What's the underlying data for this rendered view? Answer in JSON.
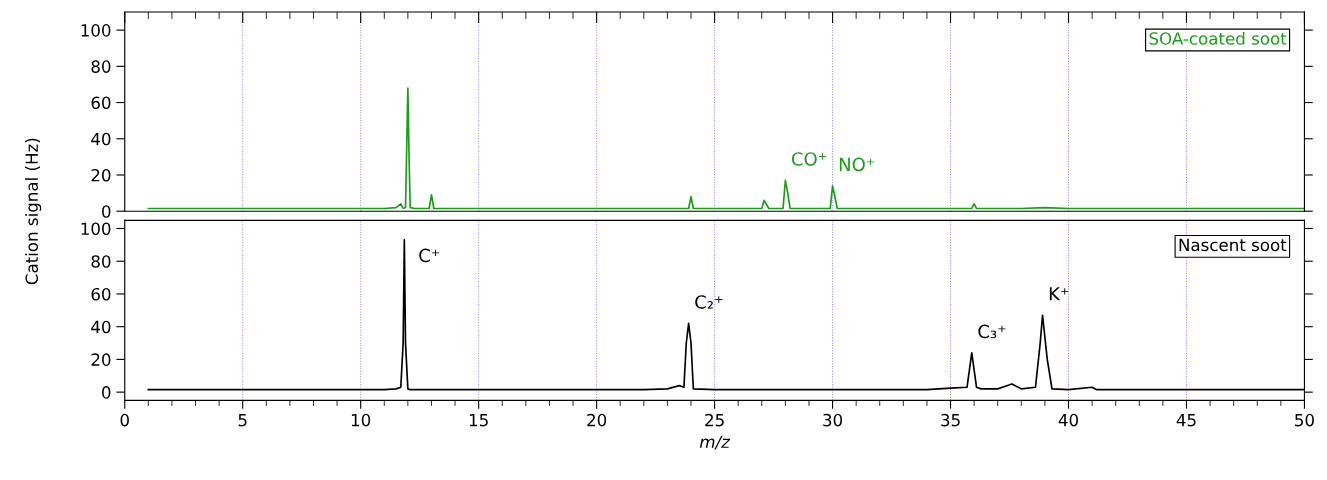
{
  "chart_data": [
    {
      "type": "line",
      "xlim": [
        0,
        50
      ],
      "ylim": [
        0,
        110
      ],
      "yticks": [
        0,
        20,
        40,
        60,
        80,
        100
      ],
      "xticks": [
        0,
        5,
        10,
        15,
        20,
        25,
        30,
        35,
        40,
        45,
        50
      ],
      "tick_labels": "y",
      "grid": "x",
      "series": [
        {
          "color": "#1a9e1a",
          "x": [
            1,
            2,
            3,
            4,
            5,
            6,
            7,
            8,
            9,
            10,
            11,
            11.5,
            11.7,
            11.8,
            11.9,
            12.0,
            12.05,
            12.1,
            12.3,
            12.9,
            13.0,
            13.1,
            14,
            15,
            16,
            17,
            18,
            19,
            20,
            21,
            22,
            23,
            23.9,
            24.0,
            24.1,
            25,
            26,
            27,
            27.1,
            27.3,
            27.9,
            28.0,
            28.1,
            28.2,
            29,
            29.9,
            30.0,
            30.1,
            30.2,
            31,
            32,
            33,
            34,
            35,
            35.9,
            36.0,
            36.1,
            37,
            38,
            39,
            40,
            41,
            42,
            43,
            44,
            45,
            46,
            47,
            48,
            49,
            50
          ],
          "values": [
            1.5,
            1.5,
            1.5,
            1.5,
            1.5,
            1.5,
            1.5,
            1.5,
            1.5,
            1.5,
            1.5,
            2,
            4,
            1.5,
            2,
            68,
            30,
            2,
            1.5,
            1.5,
            9,
            1.5,
            1.5,
            1.5,
            1.5,
            1.5,
            1.5,
            1.5,
            1.5,
            1.5,
            1.5,
            1.5,
            1.5,
            8,
            1.5,
            1.5,
            1.5,
            1.5,
            6,
            1.5,
            1.5,
            17,
            10,
            1.5,
            1.5,
            1.5,
            14,
            8,
            1.5,
            1.5,
            1.5,
            1.5,
            1.5,
            1.5,
            1.5,
            4,
            1.5,
            1.5,
            1.5,
            2,
            1.5,
            1.5,
            1.5,
            1.5,
            1.5,
            1.5,
            1.5,
            1.5,
            1.5,
            1.5,
            1.5
          ]
        }
      ],
      "annotations": [
        "SOA-coated soot",
        {
          "text": "CO⁺",
          "x": 28.0,
          "y": 17
        },
        {
          "text": "NO⁺",
          "x": 30.0,
          "y": 14
        }
      ]
    },
    {
      "type": "line",
      "xlim": [
        0,
        50
      ],
      "ylim": [
        -5,
        105
      ],
      "yticks": [
        0,
        20,
        40,
        60,
        80,
        100
      ],
      "xticks": [
        0,
        5,
        10,
        15,
        20,
        25,
        30,
        35,
        40,
        45,
        50
      ],
      "grid": "x",
      "xlabel": "m/z",
      "ylabel": "Cation signal (Hz)",
      "series": [
        {
          "color": "#000000",
          "x": [
            1,
            2,
            3,
            4,
            5,
            6,
            7,
            8,
            9,
            10,
            11,
            11.5,
            11.7,
            11.8,
            11.85,
            11.9,
            12.0,
            12.1,
            13,
            14,
            15,
            16,
            17,
            18,
            19,
            20,
            21,
            22,
            23,
            23.5,
            23.7,
            23.8,
            23.9,
            24.0,
            24.1,
            25,
            26,
            27,
            28,
            29,
            30,
            31,
            32,
            33,
            34,
            35,
            35.7,
            35.9,
            36.1,
            36.3,
            37,
            37.6,
            38,
            38.6,
            38.8,
            38.9,
            39.1,
            39.3,
            40,
            41,
            41.2,
            42,
            43,
            44,
            45,
            46,
            47,
            48,
            49,
            50
          ],
          "values": [
            1.5,
            1.5,
            1.5,
            1.5,
            1.5,
            1.5,
            1.5,
            1.5,
            1.5,
            1.5,
            1.5,
            2,
            3,
            30,
            93,
            30,
            2,
            1.5,
            1.5,
            1.5,
            1.5,
            1.5,
            1.5,
            1.5,
            1.5,
            1.5,
            1.5,
            1.5,
            2,
            4,
            3,
            30,
            42,
            30,
            2,
            1.5,
            1.5,
            1.5,
            1.5,
            1.5,
            1.5,
            1.5,
            1.5,
            1.5,
            1.5,
            2.5,
            3,
            24,
            3,
            2,
            2,
            5,
            2,
            3,
            30,
            47,
            20,
            2,
            1.5,
            3,
            1.5,
            1.5,
            1.5,
            1.5,
            1.5,
            1.5,
            1.5,
            1.5,
            1.5,
            1.5
          ]
        }
      ],
      "annotations": [
        "Nascent soot",
        {
          "text": "C⁺",
          "x": 11.85,
          "y": 93
        },
        {
          "text": "C₂⁺",
          "x": 23.9,
          "y": 42
        },
        {
          "text": "C₃⁺",
          "x": 35.9,
          "y": 24
        },
        {
          "text": "K⁺",
          "x": 38.9,
          "y": 47
        }
      ]
    }
  ]
}
